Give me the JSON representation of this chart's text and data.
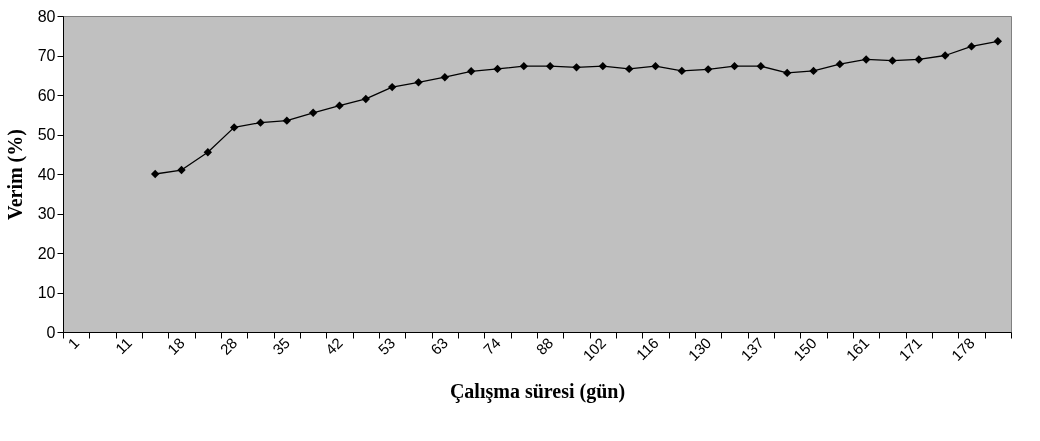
{
  "chart_data": {
    "type": "line",
    "xlabel": "Çalışma süresi (gün)",
    "ylabel": "Verim (%)",
    "categories": [
      "1",
      null,
      "11",
      null,
      "18",
      null,
      "28",
      null,
      "35",
      null,
      "42",
      null,
      "53",
      null,
      "63",
      null,
      "74",
      null,
      "88",
      null,
      "102",
      null,
      "116",
      null,
      "130",
      null,
      "137",
      null,
      "150",
      null,
      "161",
      null,
      "171",
      null,
      "178",
      null
    ],
    "series": [
      {
        "color": "#000000",
        "values": [
          null,
          null,
          null,
          40,
          41,
          45.5,
          51.8,
          53,
          53.5,
          55.5,
          57.3,
          59,
          62,
          63.2,
          64.5,
          66,
          66.6,
          67.3,
          67.3,
          67,
          67.3,
          66.6,
          67.3,
          66.1,
          66.5,
          67.3,
          67.3,
          65.6,
          66.1,
          67.8,
          69,
          68.7,
          69,
          70,
          72.3,
          73.6
        ]
      }
    ],
    "ylim": [
      0,
      80
    ],
    "yticks": [
      0,
      10,
      20,
      30,
      40,
      50,
      60,
      70,
      80
    ],
    "marker": "diamond",
    "line_style": "solid",
    "grid": false,
    "legend": false
  }
}
